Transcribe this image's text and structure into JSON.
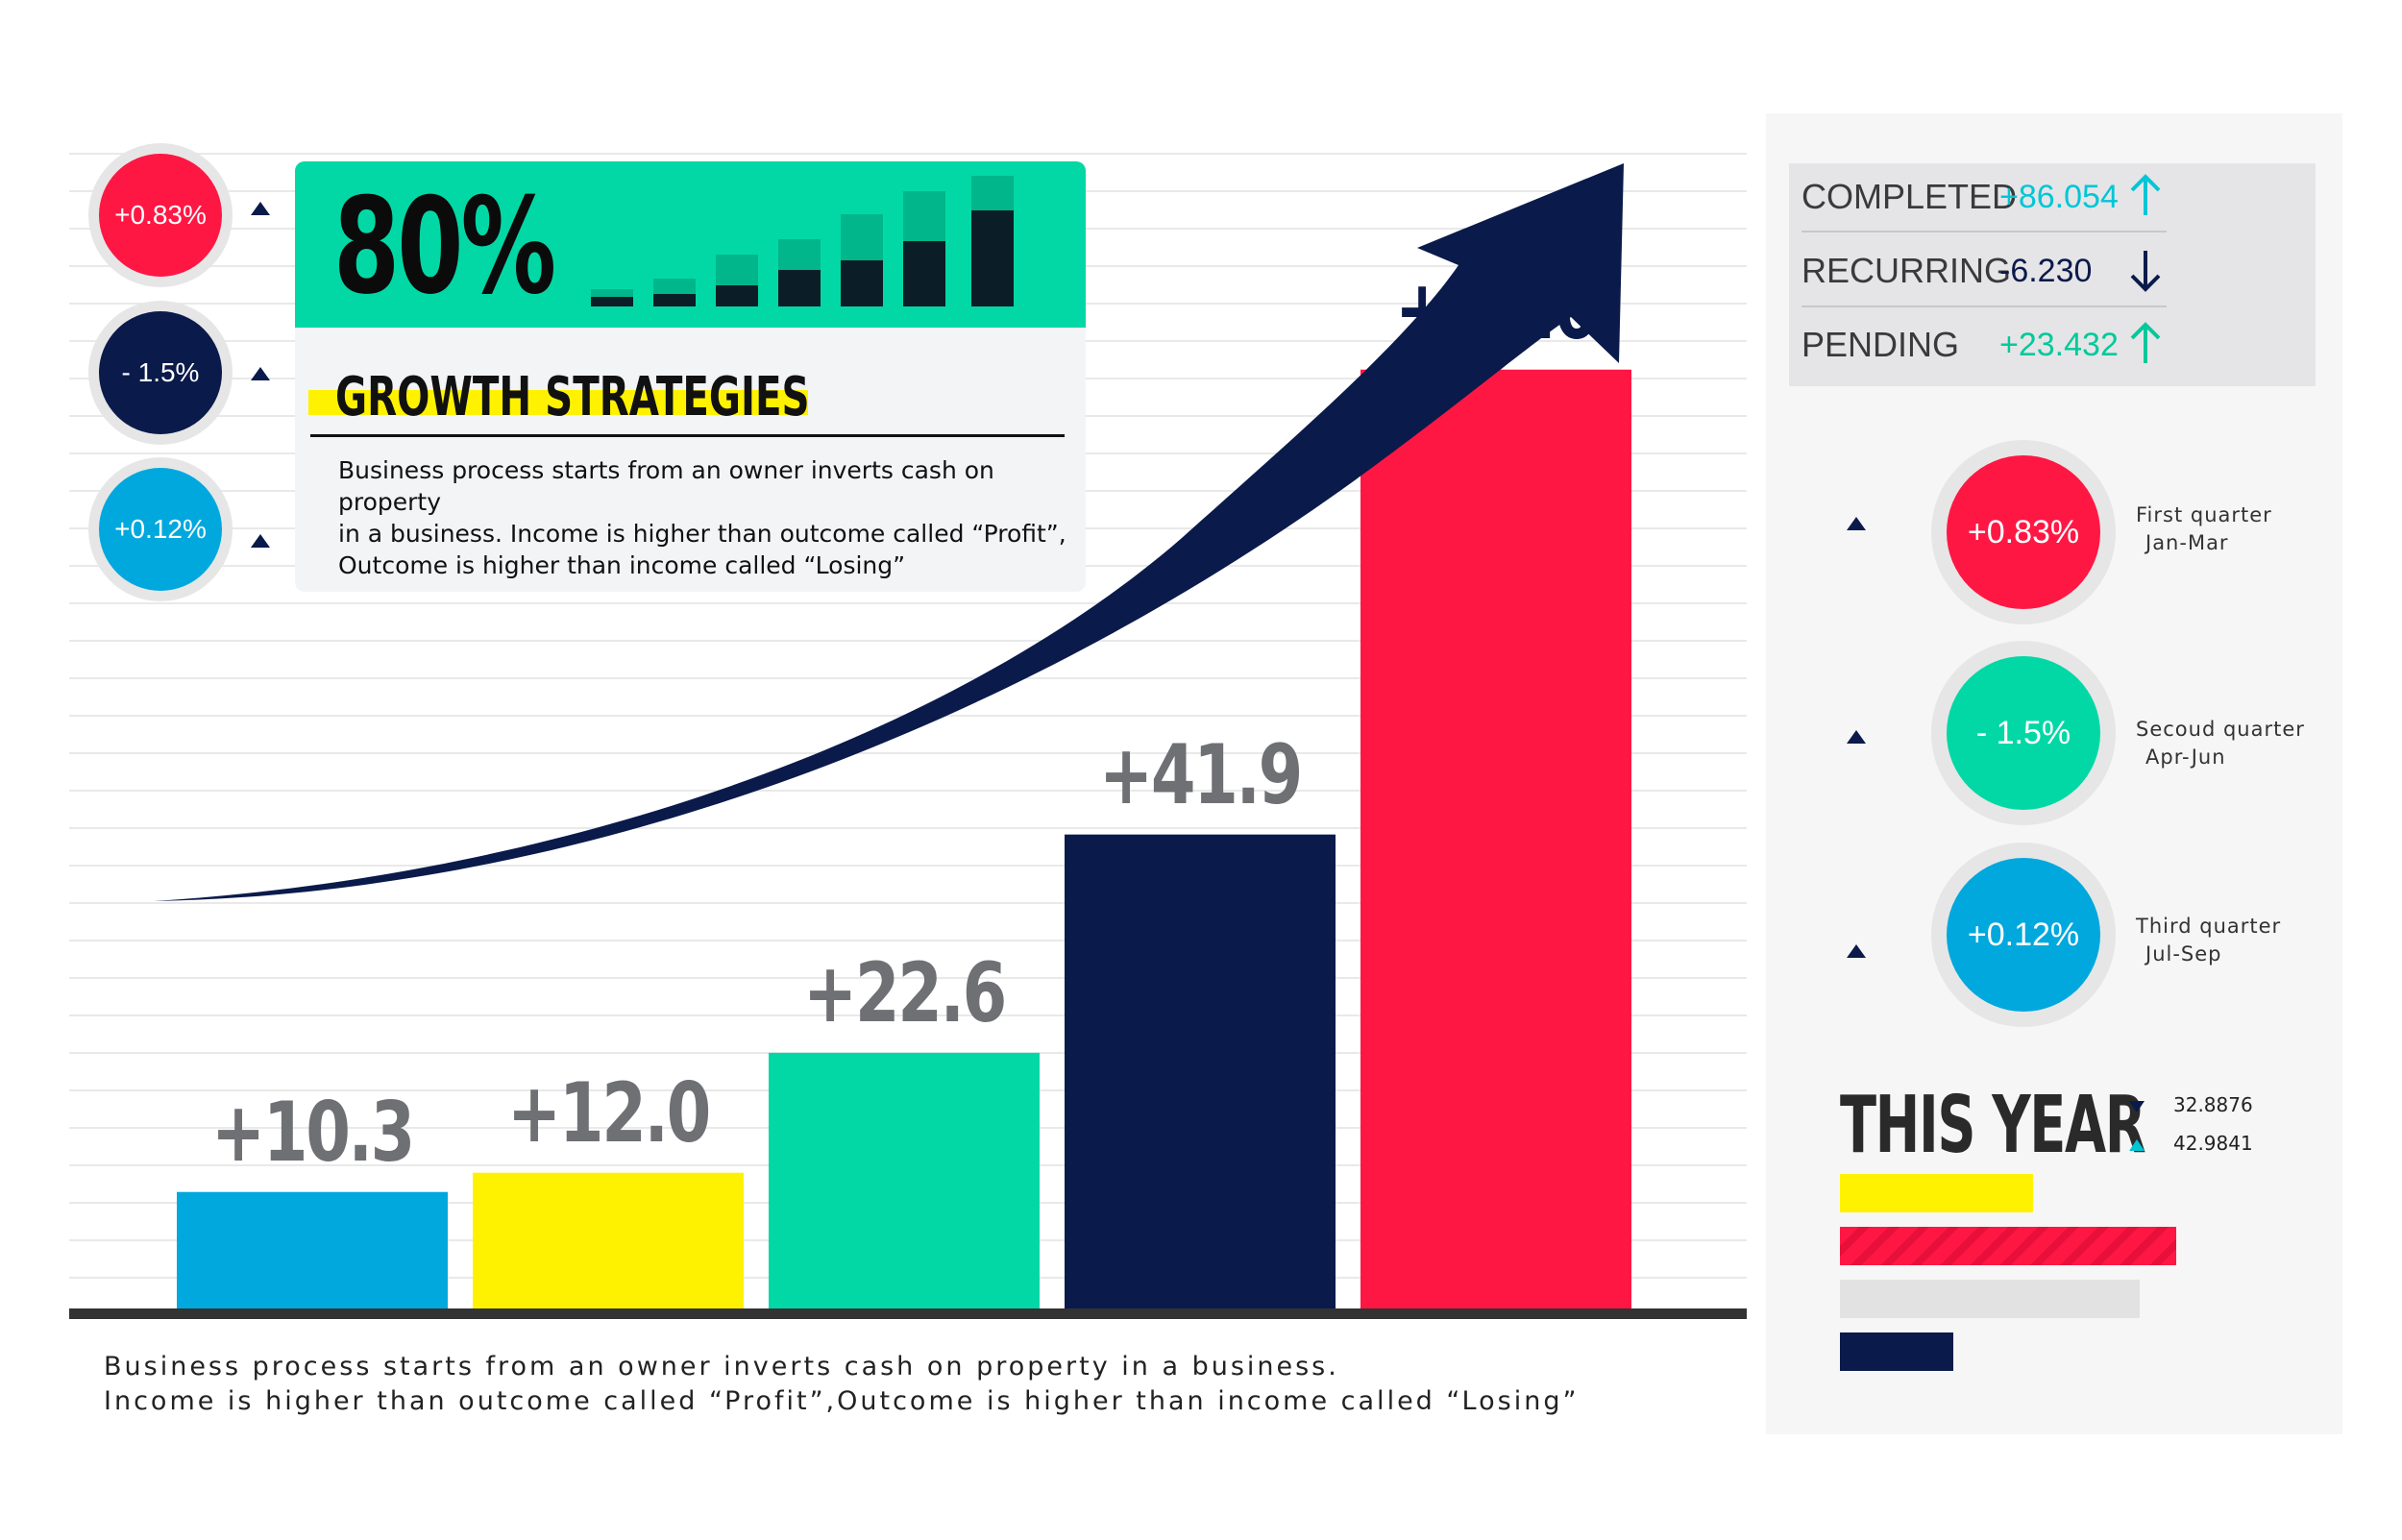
{
  "colors": {
    "cyan": "#01a8dd",
    "yellow": "#fff200",
    "green": "#02d8a5",
    "navy": "#0a1a4a",
    "red": "#ff1744",
    "gray_label": "#6e7074"
  },
  "left_bubbles": [
    {
      "text": "+0.83%",
      "color": "#ff1744"
    },
    {
      "text": "- 1.5%",
      "color": "#0a1a4a"
    },
    {
      "text": "+0.12%",
      "color": "#01a8dd"
    }
  ],
  "card": {
    "big_value": "80%",
    "title": "GROWTH STRATEGIES",
    "description": "Business process starts from an owner inverts cash on property\nin a business. Income is higher than outcome called “Profit”,\nOutcome is higher than income called “Losing”"
  },
  "chart_data": {
    "type": "bar",
    "categories": [
      "",
      "",
      "",
      "",
      ""
    ],
    "values": [
      10.3,
      12.0,
      22.6,
      41.9,
      83.0
    ],
    "value_labels": [
      "+10.3",
      "+12.0",
      "+22.6",
      "+41.9",
      "+83.0"
    ],
    "colors": [
      "#01a8dd",
      "#fff200",
      "#02d8a5",
      "#0a1a4a",
      "#ff1744"
    ],
    "label_colors": [
      "#6e7074",
      "#6e7074",
      "#6e7074",
      "#6e7074",
      "#0a1a4a"
    ],
    "title": "",
    "xlabel": "",
    "ylabel": "",
    "ylim": [
      0,
      100
    ],
    "grid": true,
    "trend_arrow": true
  },
  "bottom_description": {
    "line1": "Business process starts from an owner inverts cash on property in a business.",
    "line2": "Income is higher than outcome called “Profit”,Outcome is higher than income called “Losing”"
  },
  "stats": [
    {
      "label": "COMPLETED",
      "value": "+86.054",
      "direction": "up",
      "color": "#01c6d6"
    },
    {
      "label": "RECURRING",
      "value": "-6.230",
      "direction": "down",
      "color": "#0a1a4a"
    },
    {
      "label": "PENDING",
      "value": "+23.432",
      "direction": "up",
      "color": "#02c99a"
    }
  ],
  "quarters": [
    {
      "value": "+0.83%",
      "name": "First quarter",
      "months": "Jan-Mar",
      "color": "#ff1744"
    },
    {
      "value": "- 1.5%",
      "name": "Secoud quarter",
      "months": "Apr-Jun",
      "color": "#02d8a5"
    },
    {
      "value": "+0.12%",
      "name": "Third quarter",
      "months": "Jul-Sep",
      "color": "#01a8dd"
    }
  ],
  "this_year": {
    "title": "THIS YEAR",
    "down_value": "32.8876",
    "up_value": "42.9841",
    "bars": [
      {
        "value": 0.53,
        "color": "#fff200"
      },
      {
        "value": 0.92,
        "color": "#ff1744"
      },
      {
        "value": 0.82,
        "color": "#e2e2e2"
      },
      {
        "value": 0.31,
        "color": "#0a1a4a"
      }
    ]
  }
}
